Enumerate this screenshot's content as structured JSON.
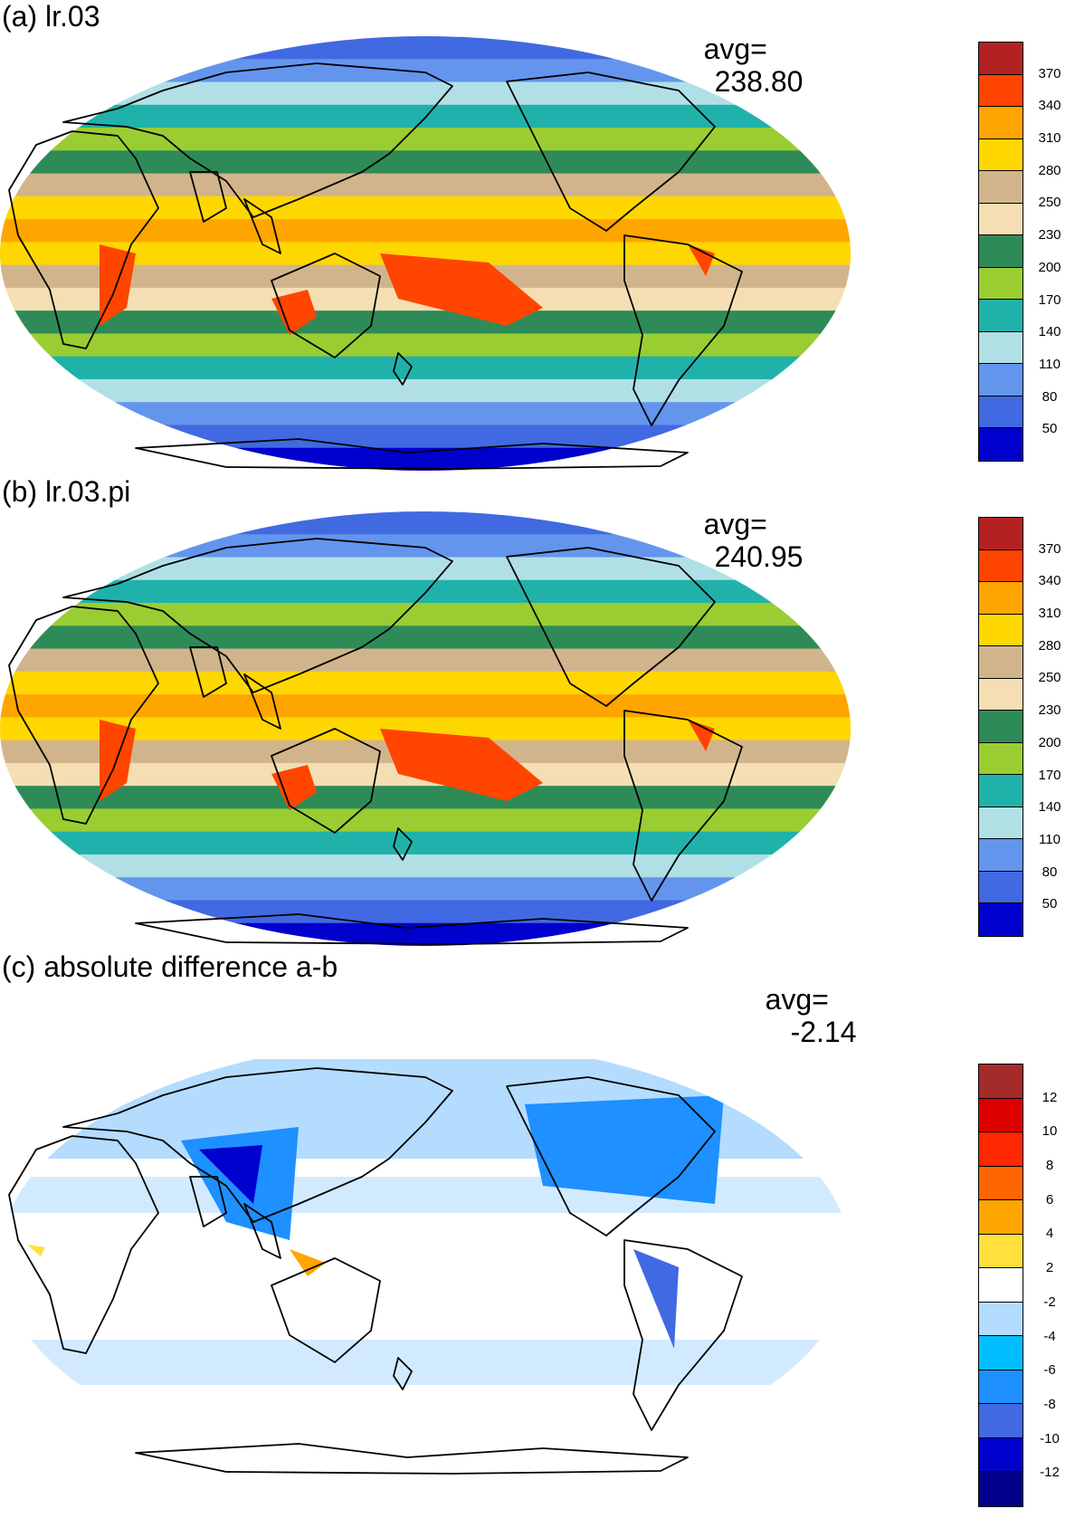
{
  "panels": [
    {
      "id": "a",
      "title": "(a) lr.03",
      "avg_label": "avg=",
      "avg_value": "238.80",
      "colorbar": {
        "colors": [
          "#b22222",
          "#ff4500",
          "#ffa500",
          "#ffd700",
          "#d2b48c",
          "#f5deb3",
          "#2e8b57",
          "#9acd32",
          "#20b2aa",
          "#b0e0e6",
          "#6495ed",
          "#4169e1",
          "#0000cd"
        ],
        "labels": [
          "370",
          "340",
          "310",
          "280",
          "250",
          "230",
          "200",
          "170",
          "140",
          "110",
          "80",
          "50"
        ]
      }
    },
    {
      "id": "b",
      "title": "(b) lr.03.pi",
      "avg_label": "avg=",
      "avg_value": "240.95",
      "colorbar": {
        "colors": [
          "#b22222",
          "#ff4500",
          "#ffa500",
          "#ffd700",
          "#d2b48c",
          "#f5deb3",
          "#2e8b57",
          "#9acd32",
          "#20b2aa",
          "#b0e0e6",
          "#6495ed",
          "#4169e1",
          "#0000cd"
        ],
        "labels": [
          "370",
          "340",
          "310",
          "280",
          "250",
          "230",
          "200",
          "170",
          "140",
          "110",
          "80",
          "50"
        ]
      }
    },
    {
      "id": "c",
      "title": "(c) absolute difference a-b",
      "avg_label": "avg=",
      "avg_value": "-2.14",
      "colorbar": {
        "colors": [
          "#a52a2a",
          "#dc0000",
          "#ff2800",
          "#ff6600",
          "#ffa500",
          "#ffe03c",
          "#ffffff",
          "#b4dcff",
          "#00bfff",
          "#1e90ff",
          "#4169e1",
          "#0000cd",
          "#00008b"
        ],
        "labels": [
          "12",
          "10",
          "8",
          "6",
          "4",
          "2",
          "-2",
          "-4",
          "-6",
          "-8",
          "-10",
          "-12"
        ]
      }
    }
  ]
}
